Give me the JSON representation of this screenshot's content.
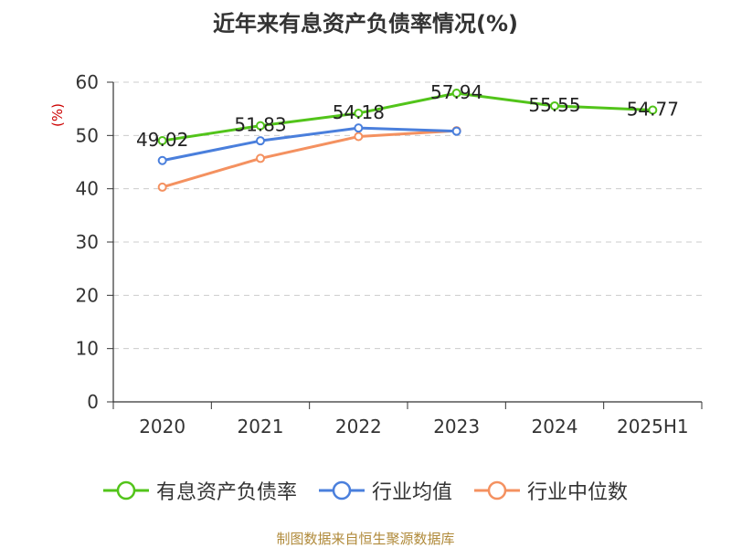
{
  "title": "近年来有息资产负债率情况(%)",
  "source": "制图数据来自恒生聚源数据库",
  "chart_data": {
    "type": "line",
    "title": "近年来有息资产负债率情况(%)",
    "ylabel": "(%)",
    "xlabel": "",
    "ylim": [
      0,
      60
    ],
    "yticks": [
      0,
      10,
      20,
      30,
      40,
      50,
      60
    ],
    "categories": [
      "2020",
      "2021",
      "2022",
      "2023",
      "2024",
      "2025H1"
    ],
    "grid": true,
    "legend_position": "bottom",
    "series": [
      {
        "name": "有息资产负债率",
        "color": "#52c41a",
        "values": [
          49.02,
          51.83,
          54.18,
          57.94,
          55.55,
          54.77
        ],
        "labels": [
          "49.02",
          "51.83",
          "54.18",
          "57.94",
          "55.55",
          "54.77"
        ]
      },
      {
        "name": "行业均值",
        "color": "#4a7fdc",
        "values": [
          45.3,
          49.0,
          51.4,
          50.8,
          null,
          null
        ]
      },
      {
        "name": "行业中位数",
        "color": "#f49160",
        "values": [
          40.3,
          45.7,
          49.8,
          50.9,
          null,
          null
        ]
      }
    ]
  }
}
